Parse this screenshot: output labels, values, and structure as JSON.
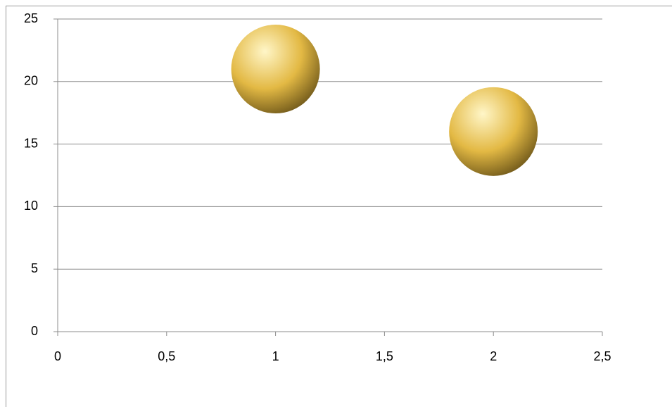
{
  "chart_data": {
    "type": "bubble",
    "x": [
      1,
      2
    ],
    "values": [
      21,
      16
    ],
    "sizes": [
      10,
      10
    ],
    "color": "#e3b944",
    "xlim": [
      0,
      2.5
    ],
    "xticks": [
      0,
      {
        "value": 0.5,
        "label": "0,5"
      },
      1,
      {
        "value": 1.5,
        "label": "1,5"
      },
      2,
      {
        "value": 2.5,
        "label": "2,5"
      }
    ],
    "ylim": [
      0,
      25
    ],
    "yticks": [
      0,
      5,
      10,
      15,
      20,
      25
    ],
    "grid": true
  }
}
